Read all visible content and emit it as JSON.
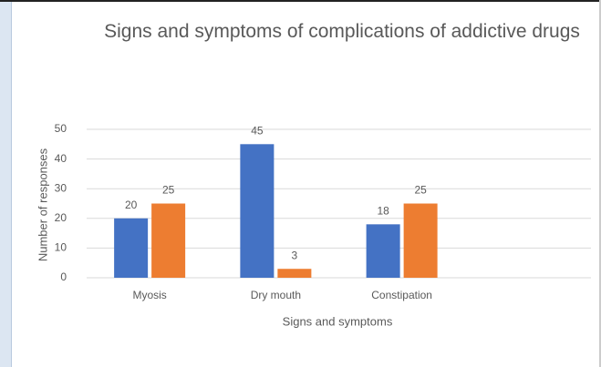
{
  "chart_data": {
    "type": "bar",
    "title": "Signs and symptoms of complications of addictive drugs",
    "x_label": "Signs and symptoms",
    "y_label": "Number of responses",
    "categories": [
      "Myosis",
      "Dry mouth",
      "Constipation",
      null
    ],
    "series": [
      {
        "color": "#4472c4",
        "values": [
          20,
          45,
          18,
          null
        ]
      },
      {
        "color": "#ed7d31",
        "values": [
          25,
          3,
          25,
          null
        ]
      }
    ],
    "ylim": [
      0,
      50
    ],
    "yticks": [
      0,
      10,
      20,
      30,
      40,
      50
    ],
    "grid": true
  }
}
